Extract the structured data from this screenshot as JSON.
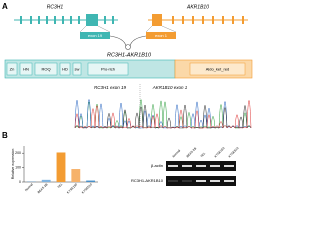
{
  "panel_a": {
    "label": "A",
    "genes": [
      "RC3H1",
      "AKR1B10"
    ],
    "exons": [
      "exon 19",
      "exon 1"
    ],
    "fusion": "RC3H1-AKR1B10",
    "domains": [
      "Zn",
      "HN",
      "ROQ",
      "HD",
      "sw",
      "Pro-rich",
      "Aldo_ket_red"
    ],
    "chromatogram_labels": [
      "RC3H1 exon 19",
      "AKR1B10 exon 1"
    ]
  },
  "panel_b": {
    "label": "B",
    "chart": {
      "type": "bar",
      "y_label": "Relative expression",
      "categories": [
        "Normal",
        "BEAS-2B",
        "TE1",
        "KYSE150",
        "KYSE510"
      ],
      "values": [
        2,
        15,
        205,
        90,
        10
      ],
      "colors": [
        "#4a90c9",
        "#7fb3e0",
        "#f39c32",
        "#f6b26b",
        "#4a90c9"
      ],
      "ylim": [
        0,
        250
      ],
      "yticks": [
        0,
        100,
        200
      ]
    },
    "gel": {
      "lanes": [
        "Normal",
        "BEAS-2B",
        "TE1",
        "KYSE150",
        "KYSE510"
      ],
      "rows": [
        "β-actin",
        "RC3H1-AKR1B10"
      ]
    }
  }
}
